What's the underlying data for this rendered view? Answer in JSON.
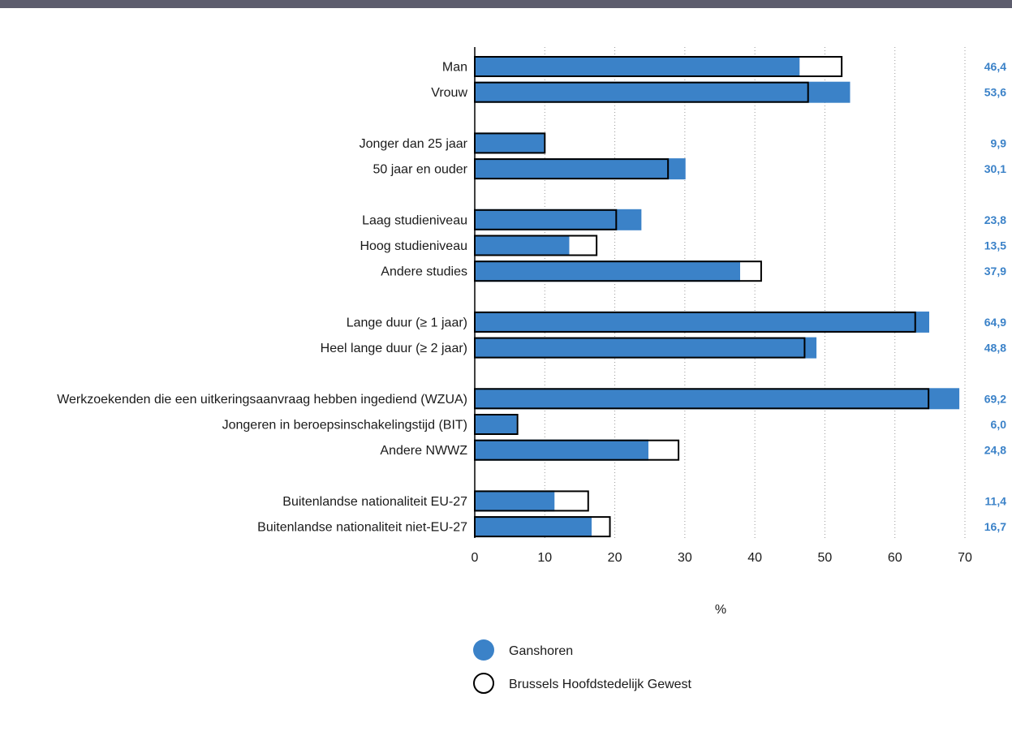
{
  "chart_data": {
    "type": "bar",
    "orientation": "horizontal",
    "xlabel": "%",
    "xlim": [
      0,
      70
    ],
    "xticks": [
      0,
      10,
      20,
      30,
      40,
      50,
      60,
      70
    ],
    "grid": "vertical dotted",
    "colors": {
      "ganshoren": "#3b82c8",
      "brussels": "#ffffff",
      "outline": "#000000",
      "value_text": "#3b82c8"
    },
    "groups": [
      {
        "categories": [
          "Man",
          "Vrouw"
        ]
      },
      {
        "categories": [
          "Jonger dan 25 jaar",
          "50 jaar en ouder"
        ]
      },
      {
        "categories": [
          "Laag studieniveau",
          "Hoog studieniveau",
          "Andere studies"
        ]
      },
      {
        "categories": [
          "Lange duur (≥ 1 jaar)",
          "Heel lange duur (≥ 2 jaar)"
        ]
      },
      {
        "categories": [
          "Werkzoekenden die een uitkeringsaanvraag hebben ingediend (WZUA)",
          "Jongeren in beroepsinschakelingstijd (BIT)",
          "Andere NWWZ"
        ]
      },
      {
        "categories": [
          "Buitenlandse nationaliteit EU-27",
          "Buitenlandse nationaliteit niet-EU-27"
        ]
      }
    ],
    "series": [
      {
        "name": "Ganshoren",
        "values": [
          46.4,
          53.6,
          9.9,
          30.1,
          23.8,
          13.5,
          37.9,
          64.9,
          48.8,
          69.2,
          6.0,
          24.8,
          11.4,
          16.7
        ],
        "value_labels": [
          "46,4",
          "53,6",
          "9,9",
          "30,1",
          "23,8",
          "13,5",
          "37,9",
          "64,9",
          "48,8",
          "69,2",
          "6,0",
          "24,8",
          "11,4",
          "16,7"
        ]
      },
      {
        "name": "Brussels Hoofdstedelijk Gewest",
        "values": [
          52.4,
          47.6,
          10.0,
          27.6,
          20.2,
          17.4,
          40.9,
          62.9,
          47.1,
          64.8,
          6.1,
          29.1,
          16.2,
          19.3
        ]
      }
    ],
    "legend": {
      "placement": "bottom-center"
    }
  }
}
